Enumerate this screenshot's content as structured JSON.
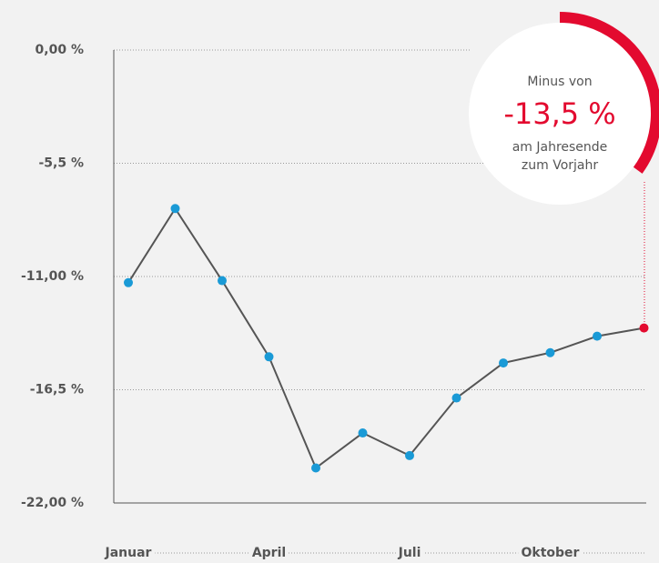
{
  "chart_data": {
    "type": "line",
    "categories": [
      "Januar",
      null,
      null,
      "April",
      null,
      null,
      "Juli",
      null,
      null,
      "Oktober",
      null,
      null
    ],
    "series": [
      {
        "color": "#1a9ad6",
        "line_color": "#555555",
        "highlight_color": "#e30a2f",
        "values": [
          -11.3,
          -7.7,
          -11.2,
          -14.9,
          -20.3,
          -18.6,
          -19.7,
          -16.9,
          -15.2,
          -14.7,
          -13.9,
          -13.5
        ]
      }
    ],
    "ylim": [
      0,
      -22
    ],
    "yticks": [
      {
        "value": 0,
        "label": "0,00 %"
      },
      {
        "value": -5.5,
        "label": "-5,5 %"
      },
      {
        "value": -11,
        "label": "-11,00 %"
      },
      {
        "value": -16.5,
        "label": "-16,5 %"
      },
      {
        "value": -22,
        "label": "-22,00 %"
      }
    ],
    "grid": true,
    "annotation": {
      "line1": "Minus von",
      "value": "-13,5 %",
      "line2": "am Jahresende",
      "line3": "zum Vorjahr"
    }
  }
}
